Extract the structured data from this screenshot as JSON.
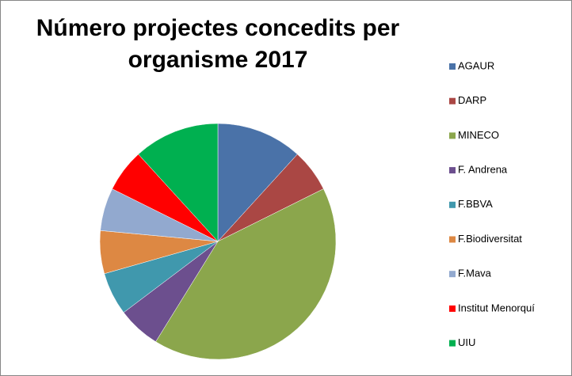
{
  "chart_data": {
    "type": "pie",
    "title": "Número projectes concedits per organisme 2017",
    "categories": [
      "AGAUR",
      "DARP",
      "MINECO",
      "F. Andrena",
      "F.BBVA",
      "F.Biodiversitat",
      "F.Mava",
      "Institut Menorquí",
      "UIU"
    ],
    "values": [
      2,
      1,
      7,
      1,
      1,
      1,
      1,
      1,
      2
    ],
    "colors": [
      "#4a72a8",
      "#aa4744",
      "#8ba64c",
      "#6c4f8e",
      "#4098ad",
      "#dd8843",
      "#92a9cf",
      "#ff0000",
      "#00b050"
    ],
    "legend": "right"
  }
}
